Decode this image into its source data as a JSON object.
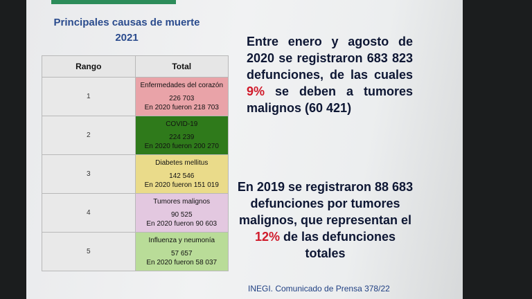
{
  "slide": {
    "title_line1": "Principales causas de muerte",
    "title_line2": "2021",
    "table": {
      "col_rank": "Rango",
      "col_total": "Total",
      "rows": [
        {
          "rank": "1",
          "name": "Enfermedades del corazón",
          "value": "226 703",
          "prev": "En 2020 fueron 218 703",
          "color": "#e9a3a8"
        },
        {
          "rank": "2",
          "name": "COVID-19",
          "value": "224 239",
          "prev": "En 2020 fueron 200 270",
          "color": "#2f7a1b"
        },
        {
          "rank": "3",
          "name": "Diabetes mellitus",
          "value": "142 546",
          "prev": "En 2020 fueron 151 019",
          "color": "#eadb8a"
        },
        {
          "rank": "4",
          "name": "Tumores malignos",
          "value": "90 525",
          "prev": "En 2020 fueron 90 603",
          "color": "#e3c8e0"
        },
        {
          "rank": "5",
          "name": "Influenza y neumonía",
          "value": "57 657",
          "prev": "En 2020 fueron 58 037",
          "color": "#b9dc98"
        }
      ]
    },
    "paragraph1": {
      "before": "Entre enero y agosto de 2020 se registraron 683 823 defunciones, de las cuales ",
      "highlight": "9%",
      "after": " se deben a tumores malignos (60 421)"
    },
    "paragraph2": {
      "before": "En 2019 se registraron 88 683 defunciones por tumores malignos, que representan el ",
      "highlight": "12%",
      "after": " de las defunciones totales"
    },
    "footer": "INEGI. Comunicado de Prensa 378/22"
  }
}
